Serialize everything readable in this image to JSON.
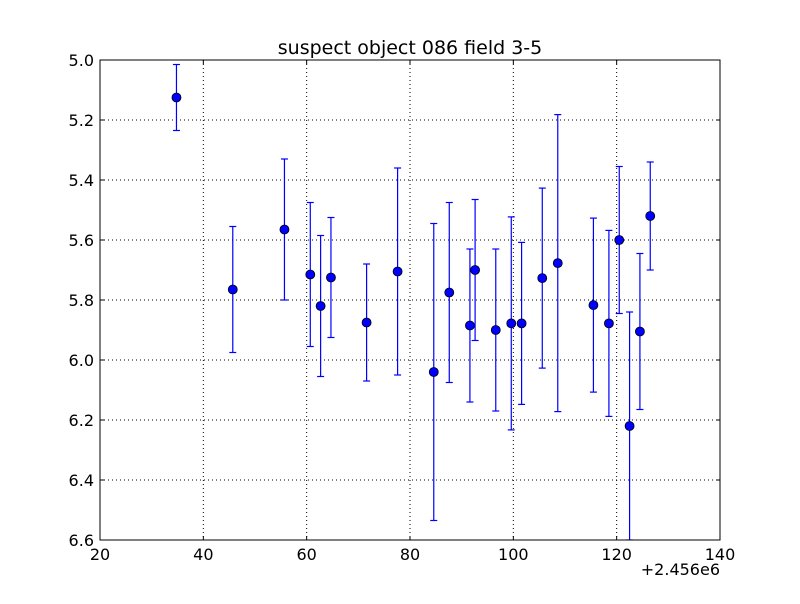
{
  "chart_data": {
    "type": "scatter",
    "title": "suspect object 086 field 3-5",
    "xlabel": "",
    "ylabel": "",
    "x_offset_label": "+2.456e6",
    "xlim": [
      20,
      140
    ],
    "ylim": [
      5.0,
      6.6
    ],
    "y_inverted": true,
    "grid": true,
    "x_ticks": [
      20,
      40,
      60,
      80,
      100,
      120,
      140
    ],
    "y_ticks": [
      5.0,
      5.2,
      5.4,
      5.6,
      5.8,
      6.0,
      6.2,
      6.4,
      6.6
    ],
    "colors": {
      "marker": "#0000ff",
      "errorbar": "#0000ff",
      "grid": "#000000"
    },
    "points": [
      {
        "x": 34.8,
        "y": 5.125,
        "err": 0.11
      },
      {
        "x": 45.7,
        "y": 5.765,
        "err": 0.21
      },
      {
        "x": 55.7,
        "y": 5.565,
        "err": 0.235
      },
      {
        "x": 60.7,
        "y": 5.715,
        "err": 0.24
      },
      {
        "x": 62.7,
        "y": 5.82,
        "err": 0.235
      },
      {
        "x": 64.7,
        "y": 5.725,
        "err": 0.2
      },
      {
        "x": 71.6,
        "y": 5.875,
        "err": 0.195
      },
      {
        "x": 77.6,
        "y": 5.705,
        "err": 0.345
      },
      {
        "x": 84.6,
        "y": 6.04,
        "err": 0.495
      },
      {
        "x": 87.6,
        "y": 5.775,
        "err": 0.3
      },
      {
        "x": 91.6,
        "y": 5.885,
        "err": 0.255
      },
      {
        "x": 92.6,
        "y": 5.7,
        "err": 0.235
      },
      {
        "x": 96.6,
        "y": 5.9,
        "err": 0.27
      },
      {
        "x": 99.6,
        "y": 5.878,
        "err": 0.355
      },
      {
        "x": 101.6,
        "y": 5.878,
        "err": 0.27
      },
      {
        "x": 105.6,
        "y": 5.727,
        "err": 0.3
      },
      {
        "x": 108.6,
        "y": 5.677,
        "err": 0.495
      },
      {
        "x": 115.5,
        "y": 5.817,
        "err": 0.29
      },
      {
        "x": 118.5,
        "y": 5.878,
        "err": 0.31
      },
      {
        "x": 120.5,
        "y": 5.6,
        "err": 0.245
      },
      {
        "x": 122.5,
        "y": 6.22,
        "err": 0.38
      },
      {
        "x": 124.5,
        "y": 5.905,
        "err": 0.26
      },
      {
        "x": 126.5,
        "y": 5.52,
        "err": 0.18
      }
    ]
  }
}
